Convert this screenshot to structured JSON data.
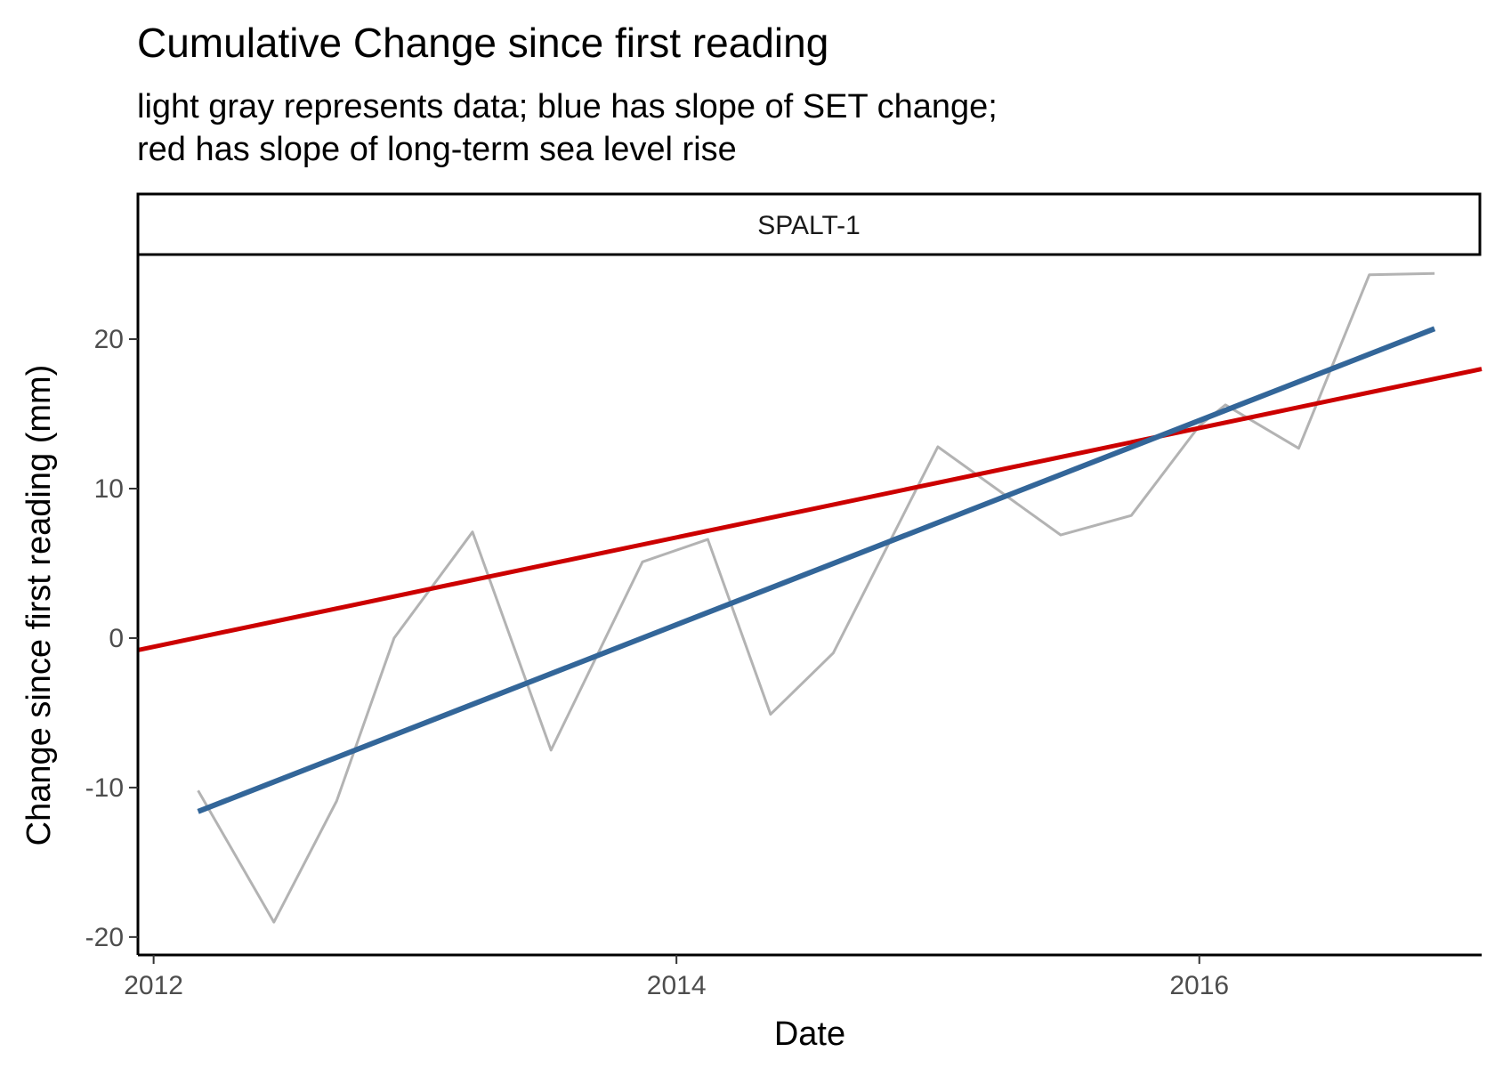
{
  "chart_data": {
    "type": "line",
    "title": "Cumulative Change since first reading",
    "subtitle_lines": [
      "light gray represents data; blue has slope of SET change;",
      "red has slope of long-term sea level rise"
    ],
    "facet_label": "SPALT-1",
    "xlabel": "Date",
    "ylabel": "Change since first reading (mm)",
    "xlim": [
      2011.94,
      2017.08
    ],
    "ylim": [
      -21.2,
      25.6
    ],
    "x_ticks": [
      2012,
      2014,
      2016
    ],
    "x_tick_labels": [
      "2012",
      "2014",
      "2016"
    ],
    "y_ticks": [
      -20,
      -10,
      0,
      10,
      20
    ],
    "y_tick_labels": [
      "-20",
      "-10",
      "0",
      "10",
      "20"
    ],
    "grid": false,
    "series": [
      {
        "key": "data",
        "color": "#b3b3b3",
        "x": [
          2012.17,
          2012.46,
          2012.7,
          2012.92,
          2013.22,
          2013.52,
          2013.87,
          2014.12,
          2014.36,
          2014.6,
          2015.0,
          2015.47,
          2015.74,
          2016.0,
          2016.1,
          2016.38,
          2016.65,
          2016.9
        ],
        "y": [
          -10.2,
          -19.0,
          -10.9,
          0.0,
          7.1,
          -7.5,
          5.1,
          6.6,
          -5.1,
          -1.0,
          12.8,
          6.9,
          8.2,
          14.2,
          15.6,
          12.7,
          24.3,
          24.4
        ]
      },
      {
        "key": "set-slope",
        "color": "#336699",
        "x": [
          2012.17,
          2016.9
        ],
        "y": [
          -11.6,
          20.7
        ]
      },
      {
        "key": "slr-slope",
        "color": "#cc0000",
        "x": [
          2011.94,
          2017.08
        ],
        "y": [
          -0.8,
          18.0
        ]
      }
    ]
  }
}
